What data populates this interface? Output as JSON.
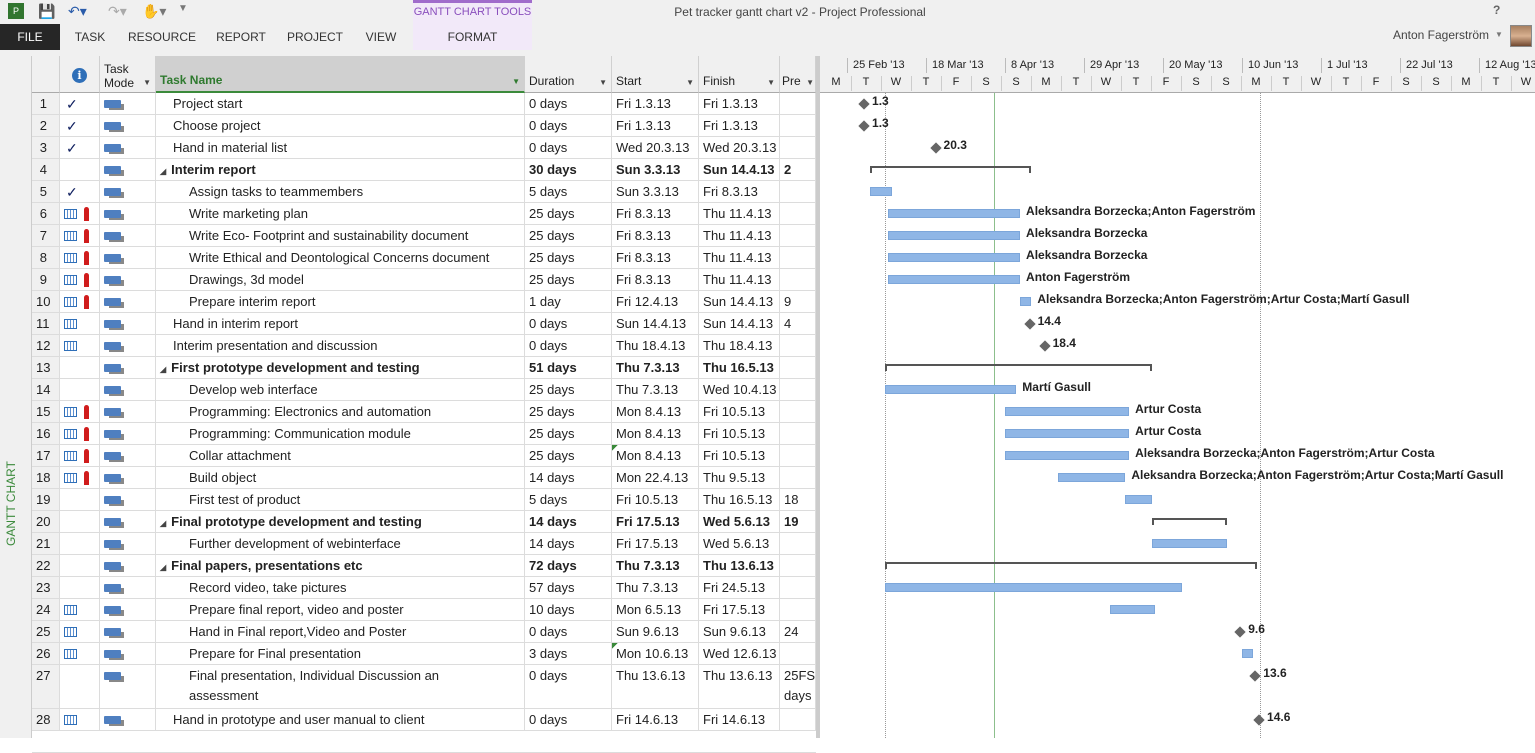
{
  "window": {
    "title": "Pet tracker gantt chart v2 - Project Professional",
    "help": "?",
    "user": "Anton Fagerström"
  },
  "ribbon": {
    "context_group": "GANTT CHART TOOLS",
    "tabs": [
      "FILE",
      "TASK",
      "RESOURCE",
      "REPORT",
      "PROJECT",
      "VIEW",
      "FORMAT"
    ]
  },
  "view_label": "GANTT CHART",
  "columns": {
    "info": "i",
    "mode": "Task Mode",
    "name": "Task Name",
    "duration": "Duration",
    "start": "Start",
    "finish": "Finish",
    "pred": "Pre"
  },
  "timeline": {
    "weeks": [
      "25 Feb '13",
      "18 Mar '13",
      "8 Apr '13",
      "29 Apr '13",
      "20 May '13",
      "10 Jun '13",
      "1 Jul '13",
      "22 Jul '13",
      "12 Aug '13"
    ],
    "days": [
      "M",
      "T",
      "W",
      "T",
      "F",
      "S",
      "S",
      "M",
      "T",
      "W",
      "T",
      "F",
      "S",
      "S",
      "M",
      "T",
      "W",
      "T",
      "F",
      "S",
      "S",
      "M",
      "T",
      "W"
    ]
  },
  "tasks": [
    {
      "id": "1",
      "ind": "check",
      "name": "Project start",
      "dur": "0 days",
      "start": "Fri 1.3.13",
      "finish": "Fri 1.3.13",
      "pred": "",
      "level": 1,
      "label": "1.3"
    },
    {
      "id": "2",
      "ind": "check",
      "name": "Choose project",
      "dur": "0 days",
      "start": "Fri 1.3.13",
      "finish": "Fri 1.3.13",
      "pred": "",
      "level": 1,
      "label": "1.3"
    },
    {
      "id": "3",
      "ind": "check",
      "name": "Hand in material list",
      "dur": "0 days",
      "start": "Wed 20.3.13",
      "finish": "Wed 20.3.13",
      "pred": "",
      "level": 1,
      "label": "20.3"
    },
    {
      "id": "4",
      "ind": "",
      "name": "Interim report",
      "dur": "30 days",
      "start": "Sun 3.3.13",
      "finish": "Sun 14.4.13",
      "pred": "2",
      "level": 0,
      "summary": true,
      "label": ""
    },
    {
      "id": "5",
      "ind": "check",
      "name": "Assign tasks to teammembers",
      "dur": "5 days",
      "start": "Sun 3.3.13",
      "finish": "Fri 8.3.13",
      "pred": "",
      "level": 2,
      "label": ""
    },
    {
      "id": "6",
      "ind": "cal-person",
      "name": "Write marketing plan",
      "dur": "25 days",
      "start": "Fri 8.3.13",
      "finish": "Thu 11.4.13",
      "pred": "",
      "level": 2,
      "label": "Aleksandra Borzecka;Anton Fagerström"
    },
    {
      "id": "7",
      "ind": "cal-person",
      "name": "Write Eco- Footprint and sustainability document",
      "dur": "25 days",
      "start": "Fri 8.3.13",
      "finish": "Thu 11.4.13",
      "pred": "",
      "level": 2,
      "label": "Aleksandra Borzecka"
    },
    {
      "id": "8",
      "ind": "cal-person",
      "name": "Write Ethical and Deontological Concerns document",
      "dur": "25 days",
      "start": "Fri 8.3.13",
      "finish": "Thu 11.4.13",
      "pred": "",
      "level": 2,
      "label": "Aleksandra Borzecka"
    },
    {
      "id": "9",
      "ind": "cal-person",
      "name": "Drawings, 3d model",
      "dur": "25 days",
      "start": "Fri 8.3.13",
      "finish": "Thu 11.4.13",
      "pred": "",
      "level": 2,
      "label": "Anton Fagerström"
    },
    {
      "id": "10",
      "ind": "cal-person",
      "name": "Prepare interim report",
      "dur": "1 day",
      "start": "Fri 12.4.13",
      "finish": "Sun 14.4.13",
      "pred": "9",
      "level": 2,
      "label": "Aleksandra Borzecka;Anton Fagerström;Artur Costa;Martí Gasull"
    },
    {
      "id": "11",
      "ind": "cal",
      "name": "Hand in interim report",
      "dur": "0 days",
      "start": "Sun 14.4.13",
      "finish": "Sun 14.4.13",
      "pred": "4",
      "level": 1,
      "label": "14.4"
    },
    {
      "id": "12",
      "ind": "cal",
      "name": "Interim presentation and discussion",
      "dur": "0 days",
      "start": "Thu 18.4.13",
      "finish": "Thu 18.4.13",
      "pred": "",
      "level": 1,
      "label": "18.4"
    },
    {
      "id": "13",
      "ind": "",
      "name": "First prototype development and testing",
      "dur": "51 days",
      "start": "Thu 7.3.13",
      "finish": "Thu 16.5.13",
      "pred": "",
      "level": 0,
      "summary": true,
      "label": ""
    },
    {
      "id": "14",
      "ind": "",
      "name": "Develop web interface",
      "dur": "25 days",
      "start": "Thu 7.3.13",
      "finish": "Wed 10.4.13",
      "pred": "",
      "level": 2,
      "label": "Martí Gasull"
    },
    {
      "id": "15",
      "ind": "cal-person",
      "name": "Programming: Electronics and automation",
      "dur": "25 days",
      "start": "Mon 8.4.13",
      "finish": "Fri 10.5.13",
      "pred": "",
      "level": 2,
      "label": "Artur Costa"
    },
    {
      "id": "16",
      "ind": "cal-person",
      "name": "Programming: Communication module",
      "dur": "25 days",
      "start": "Mon 8.4.13",
      "finish": "Fri 10.5.13",
      "pred": "",
      "level": 2,
      "label": "Artur Costa"
    },
    {
      "id": "17",
      "ind": "cal-person",
      "name": "Collar attachment",
      "dur": "25 days",
      "start": "Mon 8.4.13",
      "finish": "Fri 10.5.13",
      "pred": "",
      "level": 2,
      "label": "Aleksandra Borzecka;Anton Fagerström;Artur Costa"
    },
    {
      "id": "18",
      "ind": "cal-person",
      "name": "Build object",
      "dur": "14 days",
      "start": "Mon 22.4.13",
      "finish": "Thu 9.5.13",
      "pred": "",
      "level": 2,
      "label": "Aleksandra Borzecka;Anton Fagerström;Artur Costa;Martí Gasull"
    },
    {
      "id": "19",
      "ind": "",
      "name": "First test of product",
      "dur": "5 days",
      "start": "Fri 10.5.13",
      "finish": "Thu 16.5.13",
      "pred": "18",
      "level": 2,
      "label": ""
    },
    {
      "id": "20",
      "ind": "",
      "name": "Final prototype development and testing",
      "dur": "14 days",
      "start": "Fri 17.5.13",
      "finish": "Wed 5.6.13",
      "pred": "19",
      "level": 0,
      "summary": true,
      "label": ""
    },
    {
      "id": "21",
      "ind": "",
      "name": "Further development of webinterface",
      "dur": "14 days",
      "start": "Fri 17.5.13",
      "finish": "Wed 5.6.13",
      "pred": "",
      "level": 2,
      "label": ""
    },
    {
      "id": "22",
      "ind": "",
      "name": "Final papers, presentations etc",
      "dur": "72 days",
      "start": "Thu 7.3.13",
      "finish": "Thu 13.6.13",
      "pred": "",
      "level": 0,
      "summary": true,
      "label": ""
    },
    {
      "id": "23",
      "ind": "",
      "name": "Record video, take pictures",
      "dur": "57 days",
      "start": "Thu 7.3.13",
      "finish": "Fri 24.5.13",
      "pred": "",
      "level": 2,
      "label": ""
    },
    {
      "id": "24",
      "ind": "cal",
      "name": "Prepare final report, video and poster",
      "dur": "10 days",
      "start": "Mon 6.5.13",
      "finish": "Fri 17.5.13",
      "pred": "",
      "level": 2,
      "label": ""
    },
    {
      "id": "25",
      "ind": "cal",
      "name": "Hand in Final report,Video and Poster",
      "dur": "0 days",
      "start": "Sun 9.6.13",
      "finish": "Sun 9.6.13",
      "pred": "24",
      "level": 2,
      "label": "9.6"
    },
    {
      "id": "26",
      "ind": "cal",
      "name": "Prepare for Final presentation",
      "dur": "3 days",
      "start": "Mon 10.6.13",
      "finish": "Wed 12.6.13",
      "pred": "",
      "level": 2,
      "label": ""
    },
    {
      "id": "27",
      "ind": "",
      "name": "Final presentation, Individual Discussion an assessment",
      "dur": "0 days",
      "start": "Thu 13.6.13",
      "finish": "Thu 13.6.13",
      "pred": "25FS+ days",
      "level": 2,
      "label": "13.6",
      "tall": true
    },
    {
      "id": "28",
      "ind": "cal",
      "name": "Hand in prototype and user manual to client",
      "dur": "0 days",
      "start": "Fri 14.6.13",
      "finish": "Fri 14.6.13",
      "pred": "",
      "level": 1,
      "label": "14.6"
    }
  ]
}
